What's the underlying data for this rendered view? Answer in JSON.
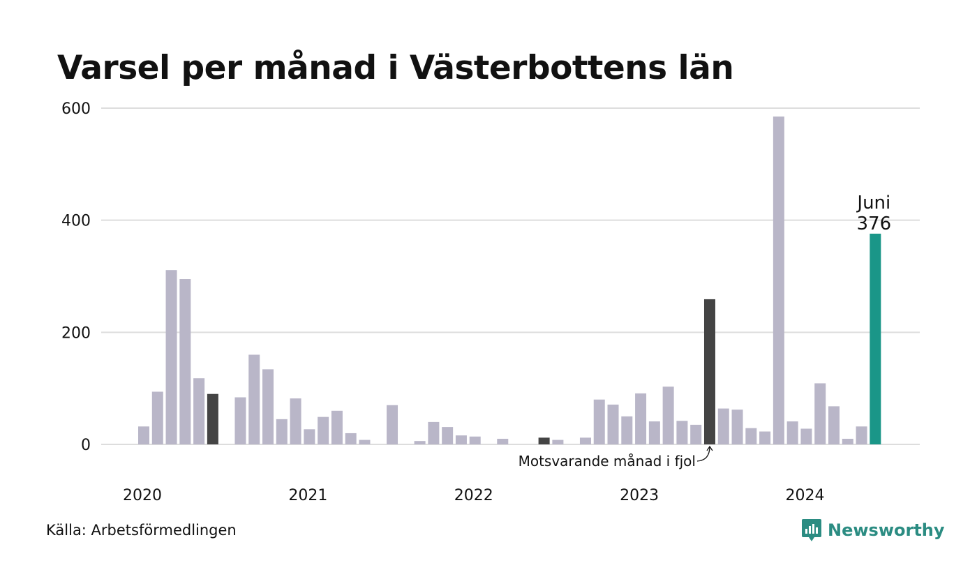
{
  "title": "Varsel per månad i Västerbottens län",
  "source": "Källa: Arbetsförmedlingen",
  "brand": {
    "name": "Newsworthy",
    "icon": "newsworthy-logo-icon"
  },
  "colors": {
    "default": "#b9b6c8",
    "same_month": "#444444",
    "highlight": "#1a9688",
    "grid": "#dddddd"
  },
  "chart_data": {
    "type": "bar",
    "title": "Varsel per månad i Västerbottens län",
    "ylim": [
      0,
      600
    ],
    "yticks": [
      0,
      200,
      400,
      600
    ],
    "xtick_labels": [
      "2020",
      "2021",
      "2022",
      "2023",
      "2024"
    ],
    "grid": true,
    "categories": [
      "2020-01",
      "2020-02",
      "2020-03",
      "2020-04",
      "2020-05",
      "2020-06",
      "2020-07",
      "2020-08",
      "2020-09",
      "2020-10",
      "2020-11",
      "2020-12",
      "2021-01",
      "2021-02",
      "2021-03",
      "2021-04",
      "2021-05",
      "2021-06",
      "2021-07",
      "2021-08",
      "2021-09",
      "2021-10",
      "2021-11",
      "2021-12",
      "2022-01",
      "2022-02",
      "2022-03",
      "2022-04",
      "2022-05",
      "2022-06",
      "2022-07",
      "2022-08",
      "2022-09",
      "2022-10",
      "2022-11",
      "2022-12",
      "2023-01",
      "2023-02",
      "2023-03",
      "2023-04",
      "2023-05",
      "2023-06",
      "2023-07",
      "2023-08",
      "2023-09",
      "2023-10",
      "2023-11",
      "2023-12",
      "2024-01",
      "2024-02",
      "2024-03",
      "2024-04",
      "2024-05",
      "2024-06"
    ],
    "values": [
      32,
      94,
      311,
      295,
      118,
      90,
      0,
      84,
      160,
      134,
      45,
      82,
      27,
      49,
      60,
      20,
      8,
      0,
      70,
      0,
      6,
      40,
      31,
      16,
      14,
      0,
      10,
      0,
      0,
      12,
      8,
      0,
      12,
      80,
      71,
      50,
      91,
      41,
      103,
      42,
      35,
      259,
      64,
      62,
      29,
      23,
      585,
      41,
      28,
      109,
      68,
      10,
      32,
      376
    ],
    "same_month_indices": [
      5,
      29,
      41
    ],
    "highlight_index": 53,
    "annotations": {
      "highlight_month": "Juni",
      "highlight_value": "376",
      "same_month_label": "Motsvarande månad i fjol"
    }
  }
}
